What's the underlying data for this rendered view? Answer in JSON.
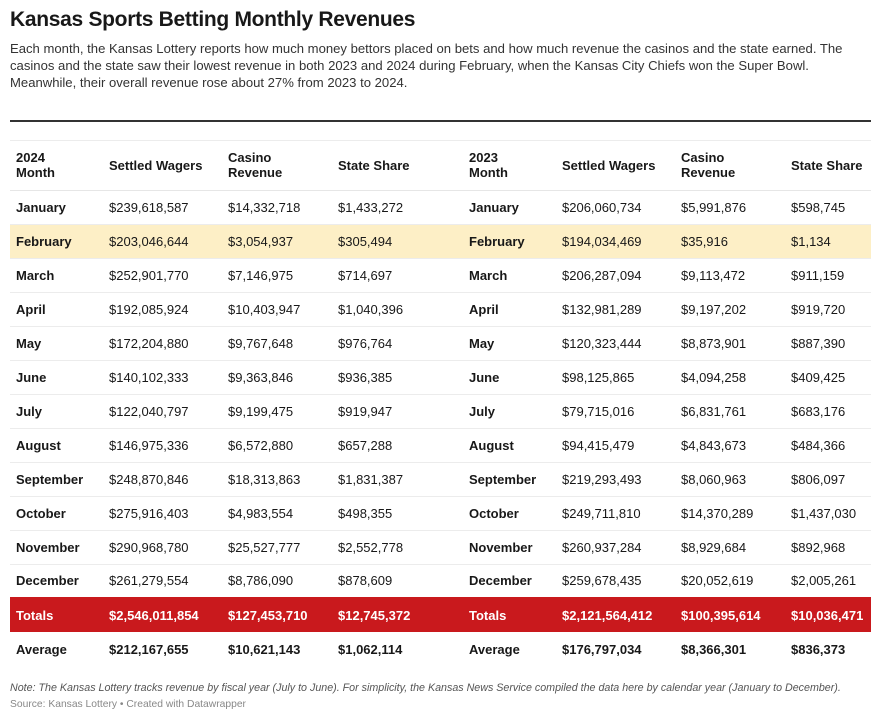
{
  "title": "Kansas Sports Betting Monthly Revenues",
  "description": "Each month, the Kansas Lottery reports how much money bettors placed on bets and how much revenue the casinos and the state earned. The casinos and the state saw their lowest revenue in both 2023 and 2024 during February, when the Kansas City Chiefs won the Super Bowl. Meanwhile, their overall revenue rose about 27% from 2023 to 2024.",
  "colors": {
    "totals_row": "#c9191d",
    "highlight_row": "#fdefc6"
  },
  "headers": {
    "month_2024": "2024\nMonth",
    "month_2024_line1": "2024",
    "month_2024_line2": "Month",
    "wagers": "Settled Wagers",
    "casino_line1": "Casino",
    "casino_line2": "Revenue",
    "state": "State Share",
    "month_2023_line1": "2023",
    "month_2023_line2": "Month"
  },
  "rows": [
    {
      "m24": "January",
      "w24": "$239,618,587",
      "c24": "$14,332,718",
      "s24": "$1,433,272",
      "m23": "January",
      "w23": "$206,060,734",
      "c23": "$5,991,876",
      "s23": "$598,745"
    },
    {
      "m24": "February",
      "w24": "$203,046,644",
      "c24": "$3,054,937",
      "s24": "$305,494",
      "m23": "February",
      "w23": "$194,034,469",
      "c23": "$35,916",
      "s23": "$1,134"
    },
    {
      "m24": "March",
      "w24": "$252,901,770",
      "c24": "$7,146,975",
      "s24": "$714,697",
      "m23": "March",
      "w23": "$206,287,094",
      "c23": "$9,113,472",
      "s23": "$911,159"
    },
    {
      "m24": "April",
      "w24": "$192,085,924",
      "c24": "$10,403,947",
      "s24": "$1,040,396",
      "m23": "April",
      "w23": "$132,981,289",
      "c23": "$9,197,202",
      "s23": "$919,720"
    },
    {
      "m24": "May",
      "w24": "$172,204,880",
      "c24": "$9,767,648",
      "s24": "$976,764",
      "m23": "May",
      "w23": "$120,323,444",
      "c23": "$8,873,901",
      "s23": "$887,390"
    },
    {
      "m24": "June",
      "w24": "$140,102,333",
      "c24": "$9,363,846",
      "s24": "$936,385",
      "m23": "June",
      "w23": "$98,125,865",
      "c23": "$4,094,258",
      "s23": "$409,425"
    },
    {
      "m24": "July",
      "w24": "$122,040,797",
      "c24": "$9,199,475",
      "s24": "$919,947",
      "m23": "July",
      "w23": "$79,715,016",
      "c23": "$6,831,761",
      "s23": "$683,176"
    },
    {
      "m24": "August",
      "w24": "$146,975,336",
      "c24": "$6,572,880",
      "s24": "$657,288",
      "m23": "August",
      "w23": "$94,415,479",
      "c23": "$4,843,673",
      "s23": "$484,366"
    },
    {
      "m24": "September",
      "w24": "$248,870,846",
      "c24": "$18,313,863",
      "s24": "$1,831,387",
      "m23": "September",
      "w23": "$219,293,493",
      "c23": "$8,060,963",
      "s23": "$806,097"
    },
    {
      "m24": "October",
      "w24": "$275,916,403",
      "c24": "$4,983,554",
      "s24": "$498,355",
      "m23": "October",
      "w23": "$249,711,810",
      "c23": "$14,370,289",
      "s23": "$1,437,030"
    },
    {
      "m24": "November",
      "w24": "$290,968,780",
      "c24": "$25,527,777",
      "s24": "$2,552,778",
      "m23": "November",
      "w23": "$260,937,284",
      "c23": "$8,929,684",
      "s23": "$892,968"
    },
    {
      "m24": "December",
      "w24": "$261,279,554",
      "c24": "$8,786,090",
      "s24": "$878,609",
      "m23": "December",
      "w23": "$259,678,435",
      "c23": "$20,052,619",
      "s23": "$2,005,261"
    }
  ],
  "totals": {
    "m24": "Totals",
    "w24": "$2,546,011,854",
    "c24": "$127,453,710",
    "s24": "$12,745,372",
    "m23": "Totals",
    "w23": "$2,121,564,412",
    "c23": "$100,395,614",
    "s23": "$10,036,471"
  },
  "average": {
    "m24": "Average",
    "w24": "$212,167,655",
    "c24": "$10,621,143",
    "s24": "$1,062,114",
    "m23": "Average",
    "w23": "$176,797,034",
    "c23": "$8,366,301",
    "s23": "$836,373"
  },
  "note": "Note: The Kansas Lottery tracks revenue by fiscal year (July to June). For simplicity, the Kansas News Service compiled the data here by calendar year (January to December).",
  "source": "Source: Kansas Lottery • Created with Datawrapper"
}
